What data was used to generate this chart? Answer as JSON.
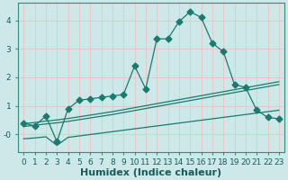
{
  "xlabel": "Humidex (Indice chaleur)",
  "background_color": "#cce8e8",
  "grid_color": "#e8c8c8",
  "line_color": "#1a7a6e",
  "xlim": [
    -0.5,
    23.5
  ],
  "ylim": [
    -0.6,
    4.6
  ],
  "x_main": [
    0,
    1,
    2,
    3,
    4,
    5,
    6,
    7,
    8,
    9,
    10,
    11,
    12,
    13,
    14,
    15,
    16,
    17,
    18,
    19,
    20,
    21,
    22,
    23
  ],
  "y_main": [
    0.4,
    0.3,
    0.65,
    -0.25,
    0.9,
    1.2,
    1.25,
    1.3,
    1.35,
    1.4,
    2.4,
    1.6,
    3.35,
    3.35,
    3.95,
    4.3,
    4.1,
    3.2,
    2.9,
    1.75,
    1.65,
    0.85,
    0.6,
    0.55
  ],
  "y_upper": [
    0.38,
    0.42,
    0.47,
    0.51,
    0.56,
    0.62,
    0.68,
    0.74,
    0.8,
    0.87,
    0.94,
    1.01,
    1.08,
    1.15,
    1.22,
    1.29,
    1.36,
    1.43,
    1.5,
    1.57,
    1.64,
    1.71,
    1.78,
    1.85
  ],
  "y_mid": [
    0.28,
    0.32,
    0.37,
    0.41,
    0.46,
    0.52,
    0.58,
    0.64,
    0.7,
    0.77,
    0.84,
    0.91,
    0.98,
    1.05,
    1.12,
    1.19,
    1.26,
    1.33,
    1.4,
    1.47,
    1.54,
    1.61,
    1.68,
    1.75
  ],
  "y_lower": [
    -0.15,
    -0.12,
    -0.08,
    -0.38,
    -0.1,
    -0.05,
    0.0,
    0.05,
    0.1,
    0.15,
    0.2,
    0.25,
    0.3,
    0.35,
    0.4,
    0.45,
    0.5,
    0.55,
    0.6,
    0.65,
    0.7,
    0.75,
    0.8,
    0.85
  ],
  "xticks": [
    0,
    1,
    2,
    3,
    4,
    5,
    6,
    7,
    8,
    9,
    10,
    11,
    12,
    13,
    14,
    15,
    16,
    17,
    18,
    19,
    20,
    21,
    22,
    23
  ],
  "yticks": [
    0,
    1,
    2,
    3,
    4
  ],
  "ytick_labels": [
    "-0",
    "1",
    "2",
    "3",
    "4"
  ],
  "font_size_label": 8,
  "font_size_tick": 6.5
}
